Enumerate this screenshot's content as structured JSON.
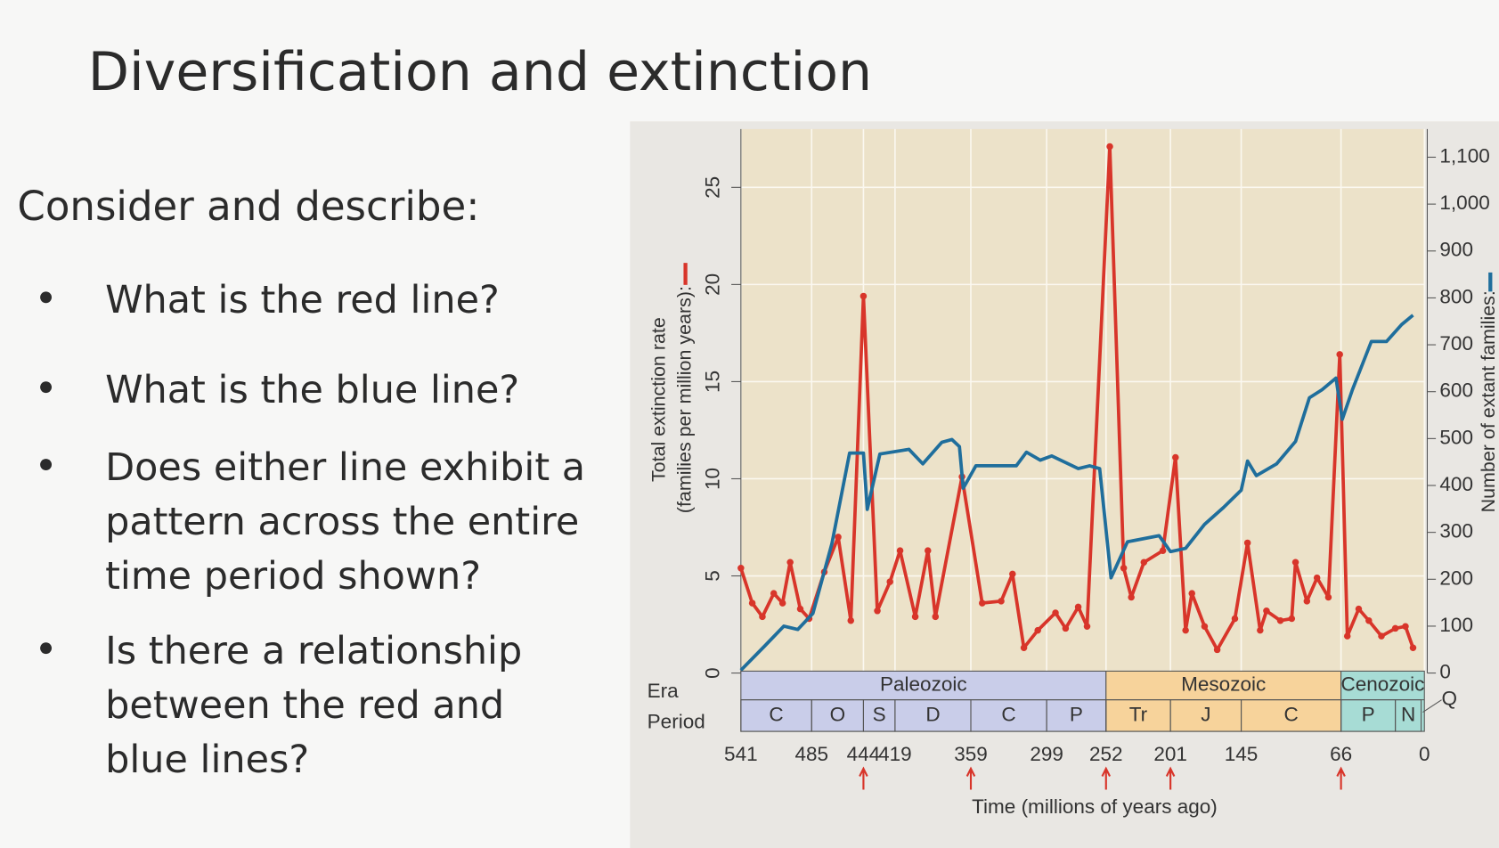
{
  "slide": {
    "title": "Diversification and extinction",
    "prompt": "Consider and describe:",
    "bullets": [
      [
        "What is the red line?"
      ],
      [
        "What is the blue line?"
      ],
      [
        "Does either line exhibit a",
        "pattern across the entire",
        "time period shown?"
      ],
      [
        "Is there a relationship",
        "between the red and",
        "blue lines?"
      ]
    ]
  },
  "chart_data": {
    "type": "line",
    "x_label": "Time (millions of years ago)",
    "y_label": [
      "Total extinction rate",
      "(families per million years):"
    ],
    "y2_label": "Number of extant families:",
    "xlim": [
      541,
      0
    ],
    "xticks": [
      541,
      485,
      444,
      419,
      359,
      299,
      252,
      201,
      145,
      66,
      0
    ],
    "ylim": [
      0,
      28
    ],
    "yticks": [
      0,
      5,
      10,
      15,
      20,
      25
    ],
    "y2lim": [
      0,
      1160
    ],
    "y2ticks": [
      0,
      100,
      200,
      300,
      400,
      500,
      600,
      700,
      800,
      900,
      {
        "value": 1000,
        "label": "1,000"
      },
      {
        "value": 1100,
        "label": "1,100"
      }
    ],
    "grid": true,
    "series": [
      {
        "color": "#d8352a",
        "x": [
          541,
          532,
          524,
          515,
          508,
          502,
          494,
          487,
          475,
          464,
          454,
          444,
          433,
          423,
          415,
          403,
          393,
          387,
          366,
          350,
          335,
          326,
          317,
          306,
          292,
          284,
          274,
          267,
          249,
          238,
          232,
          222,
          207,
          197,
          189,
          184,
          174,
          164,
          150,
          140,
          130,
          125,
          114,
          105,
          102,
          93,
          85,
          76,
          67,
          61,
          52,
          44,
          34,
          23,
          15,
          9
        ],
        "values": [
          5.4,
          3.6,
          2.9,
          4.1,
          3.6,
          5.7,
          3.3,
          2.8,
          5.2,
          7.0,
          2.7,
          19.4,
          3.2,
          4.7,
          6.3,
          2.9,
          6.3,
          2.9,
          10.1,
          3.6,
          3.7,
          5.1,
          1.3,
          2.2,
          3.1,
          2.3,
          3.4,
          2.4,
          27.1,
          5.4,
          3.9,
          5.7,
          6.3,
          11.1,
          2.2,
          4.1,
          2.4,
          1.2,
          2.8,
          6.7,
          2.2,
          3.2,
          2.7,
          2.8,
          5.7,
          3.7,
          4.9,
          3.9,
          16.4,
          1.9,
          3.3,
          2.7,
          1.9,
          2.3,
          2.4,
          1.3
        ]
      },
      {
        "color": "#1f6e9c",
        "axis": "y2",
        "x": [
          541,
          522,
          507,
          496,
          484,
          469,
          455,
          444,
          441,
          431,
          408,
          397,
          382,
          374,
          368,
          365,
          355,
          323,
          315,
          304,
          295,
          274,
          265,
          257,
          248,
          235,
          210,
          201,
          189,
          174,
          159,
          145,
          140,
          133,
          117,
          102,
          91,
          81,
          70,
          65,
          57,
          42,
          30,
          18,
          9
        ],
        "values": [
          6,
          58,
          100,
          93,
          127,
          276,
          469,
          469,
          349,
          467,
          477,
          446,
          492,
          498,
          483,
          394,
          442,
          442,
          471,
          454,
          463,
          436,
          442,
          436,
          203,
          280,
          293,
          259,
          266,
          317,
          353,
          390,
          452,
          421,
          446,
          494,
          587,
          604,
          629,
          541,
          604,
          707,
          707,
          743,
          763
        ]
      }
    ],
    "era_label": "Era",
    "period_label": "Period",
    "eras": [
      {
        "name": "Paleozoic",
        "start": 541,
        "end": 252,
        "color": "#c9cde9"
      },
      {
        "name": "Mesozoic",
        "start": 252,
        "end": 66,
        "color": "#f7d39b"
      },
      {
        "name": "Cenozoic",
        "start": 66,
        "end": 0,
        "color": "#a7dcd5"
      }
    ],
    "periods": [
      {
        "name": "C",
        "start": 541,
        "end": 485
      },
      {
        "name": "O",
        "start": 485,
        "end": 444
      },
      {
        "name": "S",
        "start": 444,
        "end": 419
      },
      {
        "name": "D",
        "start": 419,
        "end": 359
      },
      {
        "name": "C",
        "start": 359,
        "end": 299
      },
      {
        "name": "P",
        "start": 299,
        "end": 252
      },
      {
        "name": "Tr",
        "start": 252,
        "end": 201
      },
      {
        "name": "J",
        "start": 201,
        "end": 145
      },
      {
        "name": "C",
        "start": 145,
        "end": 66
      },
      {
        "name": "P",
        "start": 66,
        "end": 23
      },
      {
        "name": "N",
        "start": 23,
        "end": 2.6
      }
    ],
    "quaternary": {
      "name": "Q",
      "start": 2.6,
      "end": 0
    },
    "extinction_arrows": [
      444,
      359,
      252,
      201,
      66
    ]
  }
}
